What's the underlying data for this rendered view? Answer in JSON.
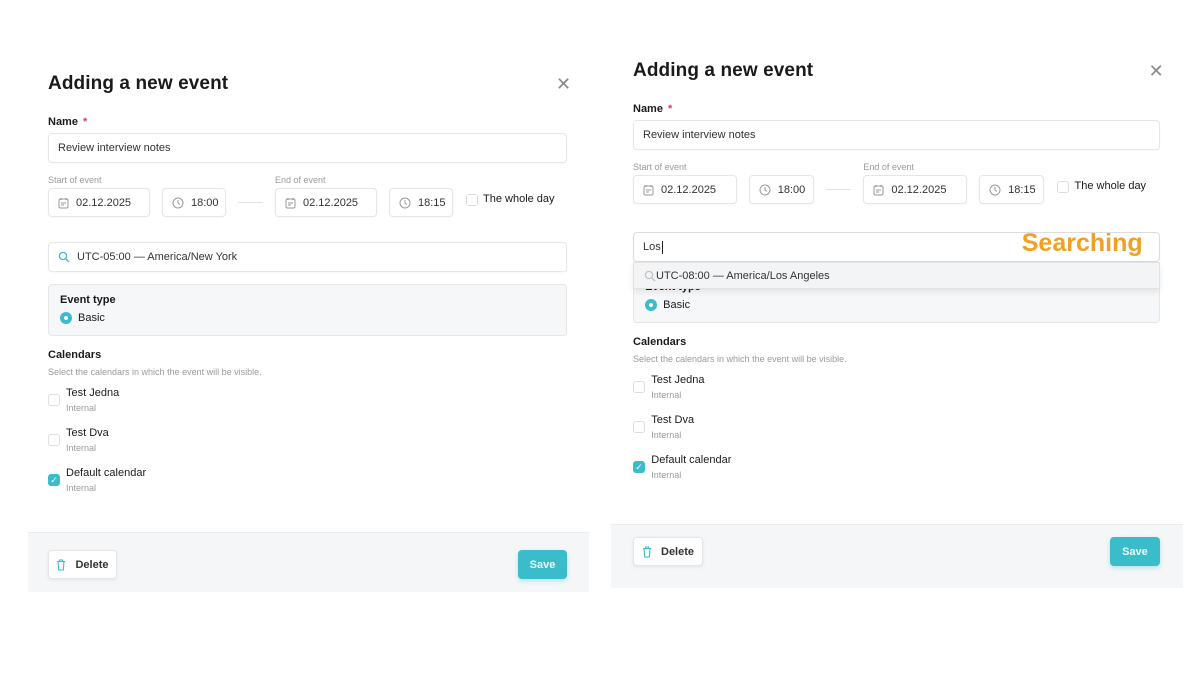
{
  "panels": [
    {
      "title": "Adding a new event",
      "name_label": "Name",
      "required_mark": "*",
      "name_value": "Review interview notes",
      "start_label": "Start of event",
      "end_label": "End of event",
      "start_date": "02.12.2025",
      "start_time": "18:00",
      "end_date": "02.12.2025",
      "end_time": "18:15",
      "whole_day_label": "The whole day",
      "whole_day_checked": false,
      "timezone_value": "UTC-05:00 — America/New York",
      "event_type_label": "Event type",
      "event_type_option": "Basic",
      "calendars_label": "Calendars",
      "calendars_desc": "Select the calendars in which the event will be visible.",
      "calendars": [
        {
          "name": "Test Jedna",
          "type": "Internal",
          "checked": false
        },
        {
          "name": "Test Dva",
          "type": "Internal",
          "checked": false
        },
        {
          "name": "Default calendar",
          "type": "Internal",
          "checked": true
        }
      ],
      "delete_label": "Delete",
      "save_label": "Save"
    },
    {
      "title": "Adding a new event",
      "name_label": "Name",
      "required_mark": "*",
      "name_value": "Review interview notes",
      "start_label": "Start of event",
      "end_label": "End of event",
      "start_date": "02.12.2025",
      "start_time": "18:00",
      "end_date": "02.12.2025",
      "end_time": "18:15",
      "whole_day_label": "The whole day",
      "whole_day_checked": false,
      "timezone_search_value": "Los",
      "timezone_result": "UTC-08:00 — America/Los Angeles",
      "annotation": "Searching",
      "event_type_label": "Event type",
      "event_type_option": "Basic",
      "calendars_label": "Calendars",
      "calendars_desc": "Select the calendars in which the event will be visible.",
      "calendars": [
        {
          "name": "Test Jedna",
          "type": "Internal",
          "checked": false
        },
        {
          "name": "Test Dva",
          "type": "Internal",
          "checked": false
        },
        {
          "name": "Default calendar",
          "type": "Internal",
          "checked": true
        }
      ],
      "delete_label": "Delete",
      "save_label": "Save"
    }
  ],
  "colors": {
    "accent": "#3bbccb",
    "required": "#d9415a",
    "annotation": "#f0a024"
  }
}
